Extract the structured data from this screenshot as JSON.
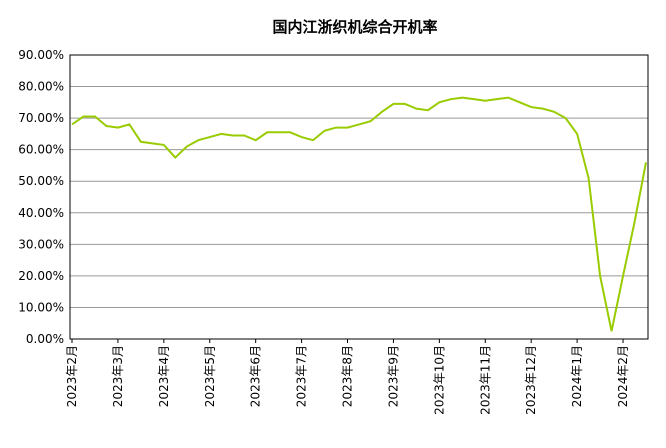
{
  "chart_data": {
    "type": "line",
    "title": "国内江浙织机综合开机率",
    "categories": [
      "2023年2月",
      null,
      null,
      null,
      "2023年3月",
      null,
      null,
      null,
      "2023年4月",
      null,
      null,
      null,
      "2023年5月",
      null,
      null,
      null,
      "2023年6月",
      null,
      null,
      null,
      "2023年7月",
      null,
      null,
      null,
      "2023年8月",
      null,
      null,
      null,
      "2023年9月",
      null,
      null,
      null,
      "2023年10月",
      null,
      null,
      null,
      "2023年11月",
      null,
      null,
      null,
      "2023年12月",
      null,
      null,
      null,
      "2024年1月",
      null,
      null,
      null,
      "2024年2月",
      null,
      null
    ],
    "series": [
      {
        "color": "#99cc00",
        "values": [
          68,
          70.5,
          70.5,
          67.5,
          67,
          68,
          62.5,
          62,
          61.5,
          57.5,
          61,
          63,
          64,
          65,
          64.5,
          64.5,
          63,
          65.5,
          65.5,
          65.5,
          64,
          63,
          66,
          67,
          67,
          68,
          69,
          72,
          74.5,
          74.5,
          73,
          72.5,
          75,
          76,
          76.5,
          76,
          75.5,
          76,
          76.5,
          75,
          73.5,
          73,
          72,
          70,
          65,
          51,
          20,
          2.5,
          20,
          37,
          56
        ]
      }
    ],
    "ylim": [
      0,
      90
    ],
    "yticks": [
      {
        "value": 0,
        "label": "0.00%"
      },
      {
        "value": 10,
        "label": "10.00%"
      },
      {
        "value": 20,
        "label": "20.00%"
      },
      {
        "value": 30,
        "label": "30.00%"
      },
      {
        "value": 40,
        "label": "40.00%"
      },
      {
        "value": 50,
        "label": "50.00%"
      },
      {
        "value": 60,
        "label": "60.00%"
      },
      {
        "value": 70,
        "label": "70.00%"
      },
      {
        "value": 80,
        "label": "80.00%"
      },
      {
        "value": 90,
        "label": "90.00%"
      }
    ],
    "grid": true
  }
}
